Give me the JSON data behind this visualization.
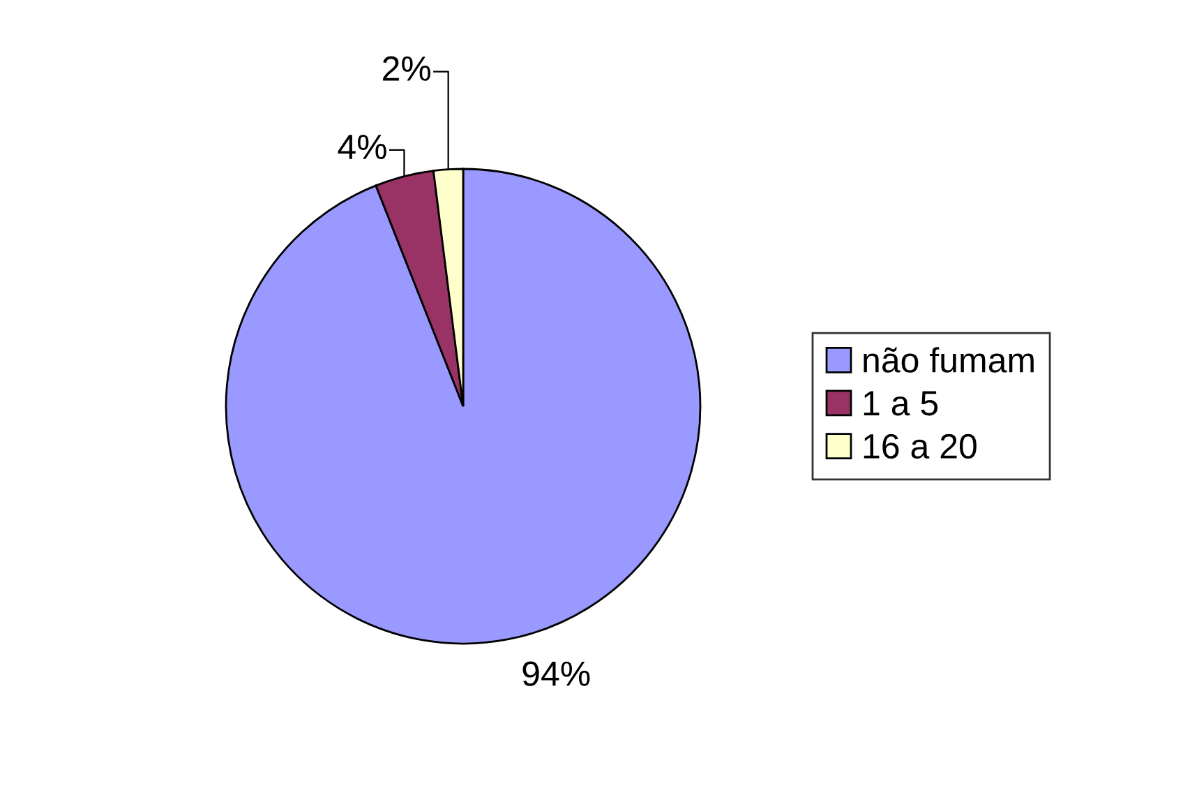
{
  "chart_data": {
    "type": "pie",
    "categories": [
      "não fumam",
      "1 a 5",
      "16 a 20"
    ],
    "values": [
      94,
      4,
      2
    ],
    "colors": [
      "#9999ff",
      "#993366",
      "#ffffcc"
    ],
    "value_labels": [
      "94%",
      "4%",
      "2%"
    ],
    "legend": "right"
  }
}
